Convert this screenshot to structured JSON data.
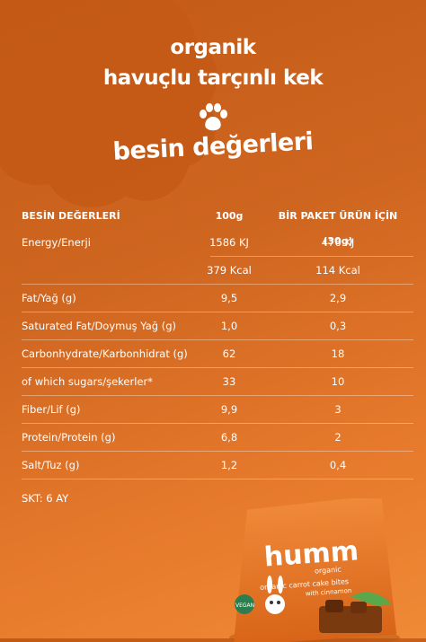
{
  "header": {
    "line1": "organik",
    "line2": "havuçlu tarçınlı kek",
    "line3": "besin değerleri"
  },
  "table": {
    "headers": [
      "BESİN DEĞERLERİ",
      "100g",
      "BİR PAKET ÜRÜN İÇİN (30g)"
    ],
    "rows": [
      {
        "name": "Energy/Enerji",
        "per100": "1586 KJ",
        "perPack": "476 KJ"
      },
      {
        "name": "",
        "per100": "379 Kcal",
        "perPack": "114 Kcal"
      },
      {
        "name": "Fat/Yağ (g)",
        "per100": "9,5",
        "perPack": "2,9"
      },
      {
        "name": "Saturated Fat/Doymuş Yağ (g)",
        "per100": "1,0",
        "perPack": "0,3"
      },
      {
        "name": "Carbonhydrate/Karbonhidrat (g)",
        "per100": "62",
        "perPack": "18"
      },
      {
        "name": "of which sugars/şekerler*",
        "per100": "33",
        "perPack": "10"
      },
      {
        "name": "Fiber/Lif (g)",
        "per100": "9,9",
        "perPack": "3"
      },
      {
        "name": "Protein/Protein (g)",
        "per100": "6,8",
        "perPack": "2"
      },
      {
        "name": "Salt/Tuz (g)",
        "per100": "1,2",
        "perPack": "0,4"
      }
    ]
  },
  "footer": {
    "shelf_life": "SKT: 6 AY"
  },
  "package": {
    "brand": "humm",
    "sub": "organic",
    "product": "organic carrot cake bites",
    "flavor": "with cinnamon",
    "badge": "VEGAN"
  },
  "colors": {
    "bg_dark": "#c25a16",
    "bg_light": "#ef8a37",
    "cloud": "#c65d18",
    "pack": "#e27224",
    "pack_dark": "#7a3a10"
  }
}
